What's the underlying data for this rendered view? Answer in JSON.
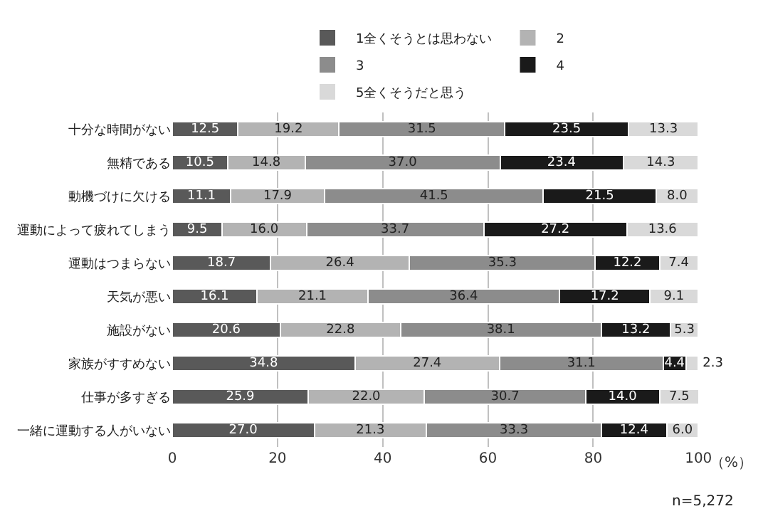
{
  "chart_data": {
    "type": "bar",
    "orientation": "horizontal",
    "stacked": true,
    "grid": "x",
    "legend": "top",
    "xlabel": "（%）",
    "xlim": [
      0,
      100.1
    ],
    "xticks": [
      0,
      20,
      40,
      60,
      80,
      100
    ],
    "categories": [
      "十分な時間がない",
      "無精である",
      "動機づけに欠ける",
      "運動によって疲れてしまう",
      "運動はつまらない",
      "天気が悪い",
      "施設がない",
      "家族がすすめない",
      "仕事が多すぎる",
      "一緒に運動する人がいない"
    ],
    "series": [
      {
        "name": "1全くそうとは思わない",
        "color": "#595959",
        "values": [
          12.5,
          10.5,
          11.1,
          9.5,
          18.7,
          16.1,
          20.6,
          34.8,
          25.9,
          27.0
        ],
        "value_labels": [
          "12.5",
          "10.5",
          "11.1",
          "9.5",
          "18.7",
          "16.1",
          "20.6",
          "34.8",
          "25.9",
          "27.0"
        ]
      },
      {
        "name": "2",
        "color": "#b3b3b3",
        "values": [
          19.2,
          14.8,
          17.9,
          16.0,
          26.4,
          21.1,
          22.8,
          27.4,
          22.0,
          21.3
        ],
        "value_labels": [
          "19.2",
          "14.8",
          "17.9",
          "16.0",
          "26.4",
          "21.1",
          "22.8",
          "27.4",
          "22.0",
          "21.3"
        ]
      },
      {
        "name": "3",
        "color": "#8c8c8c",
        "values": [
          31.5,
          37.0,
          41.5,
          33.7,
          35.3,
          36.4,
          38.1,
          31.1,
          30.7,
          33.3
        ],
        "value_labels": [
          "31.5",
          "37.0",
          "41.5",
          "33.7",
          "35.3",
          "36.4",
          "38.1",
          "31.1",
          "30.7",
          "33.3"
        ]
      },
      {
        "name": "4",
        "color": "#1a1a1a",
        "values": [
          23.5,
          23.4,
          21.5,
          27.2,
          12.2,
          17.2,
          13.2,
          4.4,
          14.0,
          12.4
        ],
        "value_labels": [
          "23.5",
          "23.4",
          "21.5",
          "27.2",
          "12.2",
          "17.2",
          "13.2",
          "4.4",
          "14.0",
          "12.4"
        ]
      },
      {
        "name": "5全くそうだと思う",
        "color": "#d9d9d9",
        "values": [
          13.3,
          14.3,
          8.0,
          13.6,
          7.4,
          9.1,
          5.3,
          2.3,
          7.5,
          6.0
        ],
        "value_labels": [
          "13.3",
          "14.3",
          "8.0",
          "13.6",
          "7.4",
          "9.1",
          "5.3",
          "2.3",
          "7.5",
          "6.0"
        ]
      }
    ],
    "annotations": [
      "n=5,272"
    ]
  }
}
